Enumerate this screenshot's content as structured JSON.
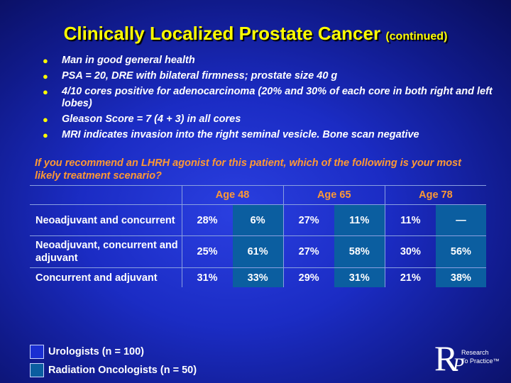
{
  "title": {
    "main": "Clinically Localized Prostate Cancer",
    "sub": "(continued)"
  },
  "bullets": [
    "Man in good general health",
    "PSA = 20, DRE with bilateral firmness; prostate size 40 g",
    "4/10 cores positive for adenocarcinoma (20% and 30% of each core in both right and left lobes)",
    "Gleason Score = 7 (4 + 3) in all cores",
    "MRI indicates invasion into the right seminal vesicle. Bone scan negative"
  ],
  "question": "If you recommend an LHRH agonist for this patient, which of the following is your most likely treatment scenario?",
  "table": {
    "age_groups": [
      "Age 48",
      "Age 65",
      "Age 78"
    ],
    "rows": [
      {
        "label": "Neoadjuvant and concurrent",
        "values": [
          "28%",
          "6%",
          "27%",
          "11%",
          "11%",
          "—"
        ]
      },
      {
        "label": "Neoadjuvant, concurrent and adjuvant",
        "values": [
          "25%",
          "61%",
          "27%",
          "58%",
          "30%",
          "56%"
        ]
      },
      {
        "label": "Concurrent and adjuvant",
        "values": [
          "31%",
          "33%",
          "29%",
          "31%",
          "21%",
          "38%"
        ]
      }
    ]
  },
  "legend": {
    "urologists": "Urologists  (n = 100)",
    "rad_onc": "Radiation Oncologists  (n = 50)"
  },
  "logo": {
    "letters_r": "R",
    "letters_p": "P",
    "line1": "Research",
    "line2": "To Practice™"
  },
  "colors": {
    "title": "#ffff00",
    "question": "#ff9933",
    "urologist_fill": "#1a2fd2",
    "rad_onc_fill": "#0b5ea0"
  }
}
